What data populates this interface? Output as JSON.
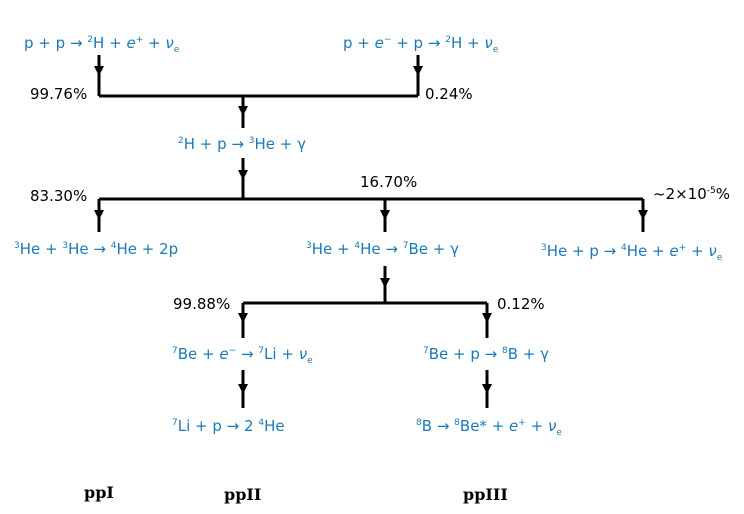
{
  "colors": {
    "reaction": "#1a7ab8",
    "lines": "#000000",
    "text": "#000000"
  },
  "reactions": {
    "pp": {
      "lhs": "p + p",
      "arrow": "→",
      "product_sup": "2",
      "product": "H",
      "plus1": "+",
      "particle": "e",
      "particle_sup": "+",
      "plus2": "+",
      "nu": "ν",
      "nu_sub": "e"
    },
    "pep": {
      "lhs1": "p +",
      "particle": "e",
      "particle_sup": "−",
      "lhs2": "+ p",
      "arrow": "→",
      "product_sup": "2",
      "product": "H",
      "plus": "+",
      "nu": "ν",
      "nu_sub": "e"
    },
    "dp": {
      "reac_sup": "2",
      "reac": "H + p",
      "arrow": "→",
      "product_sup": "3",
      "product": "He + γ"
    },
    "ppI": {
      "a_sup": "3",
      "a": "He +",
      "b_sup": "3",
      "b": "He",
      "arrow": "→",
      "product_sup": "4",
      "product": "He + 2p"
    },
    "he3he4": {
      "a_sup": "3",
      "a": "He +",
      "b_sup": "4",
      "b": "He",
      "arrow": "→",
      "product_sup": "7",
      "product": "Be + γ"
    },
    "hep": {
      "a_sup": "3",
      "a": "He + p",
      "arrow": "→",
      "product_sup": "4",
      "product": "He +",
      "particle": "e",
      "particle_sup": "+",
      "plus": "+",
      "nu": "ν",
      "nu_sub": "e"
    },
    "be7e": {
      "a_sup": "7",
      "a": "Be +",
      "particle": "e",
      "particle_sup": "−",
      "arrow": "→",
      "product_sup": "7",
      "product": "Li +",
      "nu": "ν",
      "nu_sub": "e"
    },
    "be7p": {
      "a_sup": "7",
      "a": "Be + p",
      "arrow": "→",
      "product_sup": "8",
      "product": "B + γ"
    },
    "li7p": {
      "a_sup": "7",
      "a": "Li + p",
      "arrow": "→",
      "product": "2",
      "product_sup": "4",
      "product2": "He"
    },
    "b8": {
      "a_sup": "8",
      "a": "B",
      "arrow": "→",
      "product_sup": "8",
      "product": "Be* +",
      "particle": "e",
      "particle_sup": "+",
      "plus": "+",
      "nu": "ν",
      "nu_sub": "e"
    }
  },
  "branches": {
    "pp_pct": "99.76%",
    "pep_pct": "0.24%",
    "ppI_pct": "83.30%",
    "he4_pct": "16.70%",
    "hep_prefix": "~2×10",
    "hep_exp": "-5",
    "hep_suffix": "%",
    "ppII_pct": "99.88%",
    "ppIII_pct": "0.12%"
  },
  "chains": {
    "ppI": "ppI",
    "ppII": "ppII",
    "ppIII": "ppIII"
  }
}
